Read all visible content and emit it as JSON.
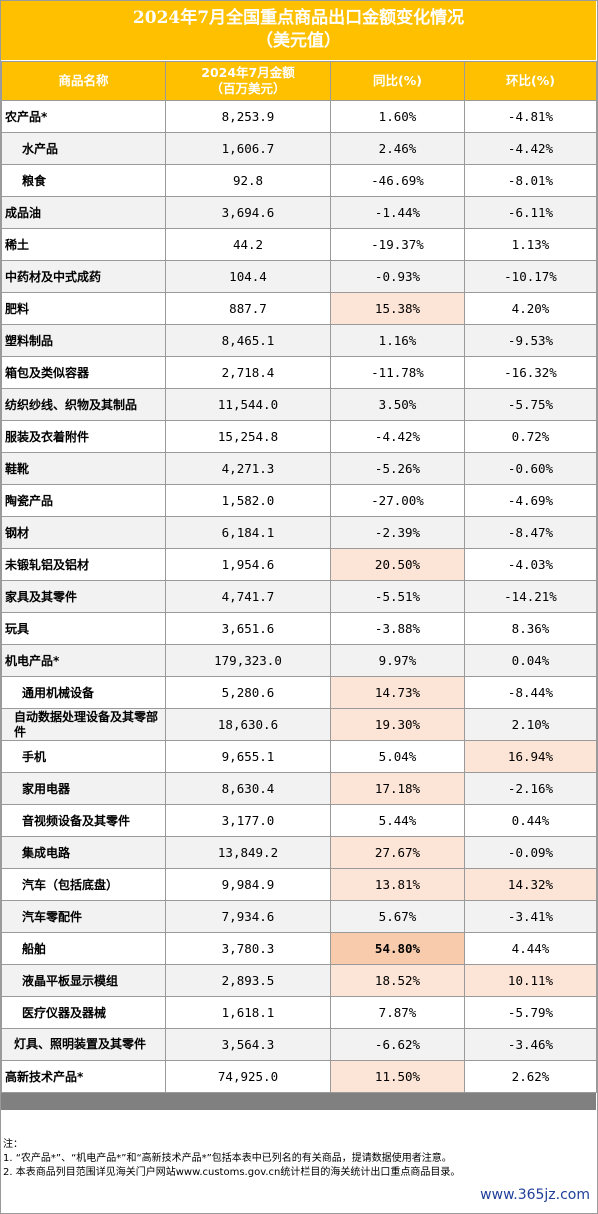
{
  "title_line1": "2024年7月全国重点商品出口金额变化情况",
  "title_line2": "（美元值）",
  "headers": {
    "name": "商品名称",
    "amount_line1": "2024年7月金额",
    "amount_line2": "（百万美元）",
    "yoy": "同比(%)",
    "mom": "环比(%)"
  },
  "rows": [
    {
      "name": "农产品*",
      "amount": "8,253.9",
      "yoy": "1.60%",
      "mom": "-4.81%"
    },
    {
      "name": "水产品",
      "amount": "1,606.7",
      "yoy": "2.46%",
      "mom": "-4.42%"
    },
    {
      "name": "粮食",
      "amount": "92.8",
      "yoy": "-46.69%",
      "mom": "-8.01%"
    },
    {
      "name": "成品油",
      "amount": "3,694.6",
      "yoy": "-1.44%",
      "mom": "-6.11%"
    },
    {
      "name": "稀土",
      "amount": "44.2",
      "yoy": "-19.37%",
      "mom": "1.13%"
    },
    {
      "name": "中药材及中式成药",
      "amount": "104.4",
      "yoy": "-0.93%",
      "mom": "-10.17%"
    },
    {
      "name": "肥料",
      "amount": "887.7",
      "yoy": "15.38%",
      "mom": "4.20%"
    },
    {
      "name": "塑料制品",
      "amount": "8,465.1",
      "yoy": "1.16%",
      "mom": "-9.53%"
    },
    {
      "name": "箱包及类似容器",
      "amount": "2,718.4",
      "yoy": "-11.78%",
      "mom": "-16.32%"
    },
    {
      "name": "纺织纱线、织物及其制品",
      "amount": "11,544.0",
      "yoy": "3.50%",
      "mom": "-5.75%"
    },
    {
      "name": "服装及衣着附件",
      "amount": "15,254.8",
      "yoy": "-4.42%",
      "mom": "0.72%"
    },
    {
      "name": "鞋靴",
      "amount": "4,271.3",
      "yoy": "-5.26%",
      "mom": "-0.60%"
    },
    {
      "name": "陶瓷产品",
      "amount": "1,582.0",
      "yoy": "-27.00%",
      "mom": "-4.69%"
    },
    {
      "name": "钢材",
      "amount": "6,184.1",
      "yoy": "-2.39%",
      "mom": "-8.47%"
    },
    {
      "name": "未锻轧铝及铝材",
      "amount": "1,954.6",
      "yoy": "20.50%",
      "mom": "-4.03%"
    },
    {
      "name": "家具及其零件",
      "amount": "4,741.7",
      "yoy": "-5.51%",
      "mom": "-14.21%"
    },
    {
      "name": "玩具",
      "amount": "3,651.6",
      "yoy": "-3.88%",
      "mom": "8.36%"
    },
    {
      "name": "机电产品*",
      "amount": "179,323.0",
      "yoy": "9.97%",
      "mom": "0.04%"
    },
    {
      "name": "通用机械设备",
      "amount": "5,280.6",
      "yoy": "14.73%",
      "mom": "-8.44%"
    },
    {
      "name": "自动数据处理设备及其零部件",
      "amount": "18,630.6",
      "yoy": "19.30%",
      "mom": "2.10%"
    },
    {
      "name": "手机",
      "amount": "9,655.1",
      "yoy": "5.04%",
      "mom": "16.94%"
    },
    {
      "name": "家用电器",
      "amount": "8,630.4",
      "yoy": "17.18%",
      "mom": "-2.16%"
    },
    {
      "name": "音视频设备及其零件",
      "amount": "3,177.0",
      "yoy": "5.44%",
      "mom": "0.44%"
    },
    {
      "name": "集成电路",
      "amount": "13,849.2",
      "yoy": "27.67%",
      "mom": "-0.09%"
    },
    {
      "name": "汽车（包括底盘）",
      "amount": "9,984.9",
      "yoy": "13.81%",
      "mom": "14.32%"
    },
    {
      "name": "汽车零配件",
      "amount": "7,934.6",
      "yoy": "5.67%",
      "mom": "-3.41%"
    },
    {
      "name": "船舶",
      "amount": "3,780.3",
      "yoy": "54.80%",
      "mom": "4.44%"
    },
    {
      "name": "液晶平板显示模组",
      "amount": "2,893.5",
      "yoy": "18.52%",
      "mom": "10.11%"
    },
    {
      "name": "医疗仪器及器械",
      "amount": "1,618.1",
      "yoy": "7.87%",
      "mom": "-5.79%"
    },
    {
      "name": "灯具、照明装置及其零件",
      "amount": "3,564.3",
      "yoy": "-6.62%",
      "mom": "-3.46%"
    },
    {
      "name": "高新技术产品*",
      "amount": "74,925.0",
      "yoy": "11.50%",
      "mom": "2.62%"
    }
  ],
  "notes": {
    "label": "注：",
    "line1": "1. “农产品*”、“机电产品*”和“高新技术产品*”包括本表中已列名的有关商品，提请数据使用者注意。",
    "line2": "2. 本表商品列目范围详见海关门户网站www.customs.gov.cn统计栏目的海关统计出口重点商品目录。"
  },
  "watermark": "www.365jz.com",
  "colors": {
    "header_bg": "#ffc000",
    "highlight_light": "#fce4d6",
    "highlight_strong": "#f8cbad"
  }
}
